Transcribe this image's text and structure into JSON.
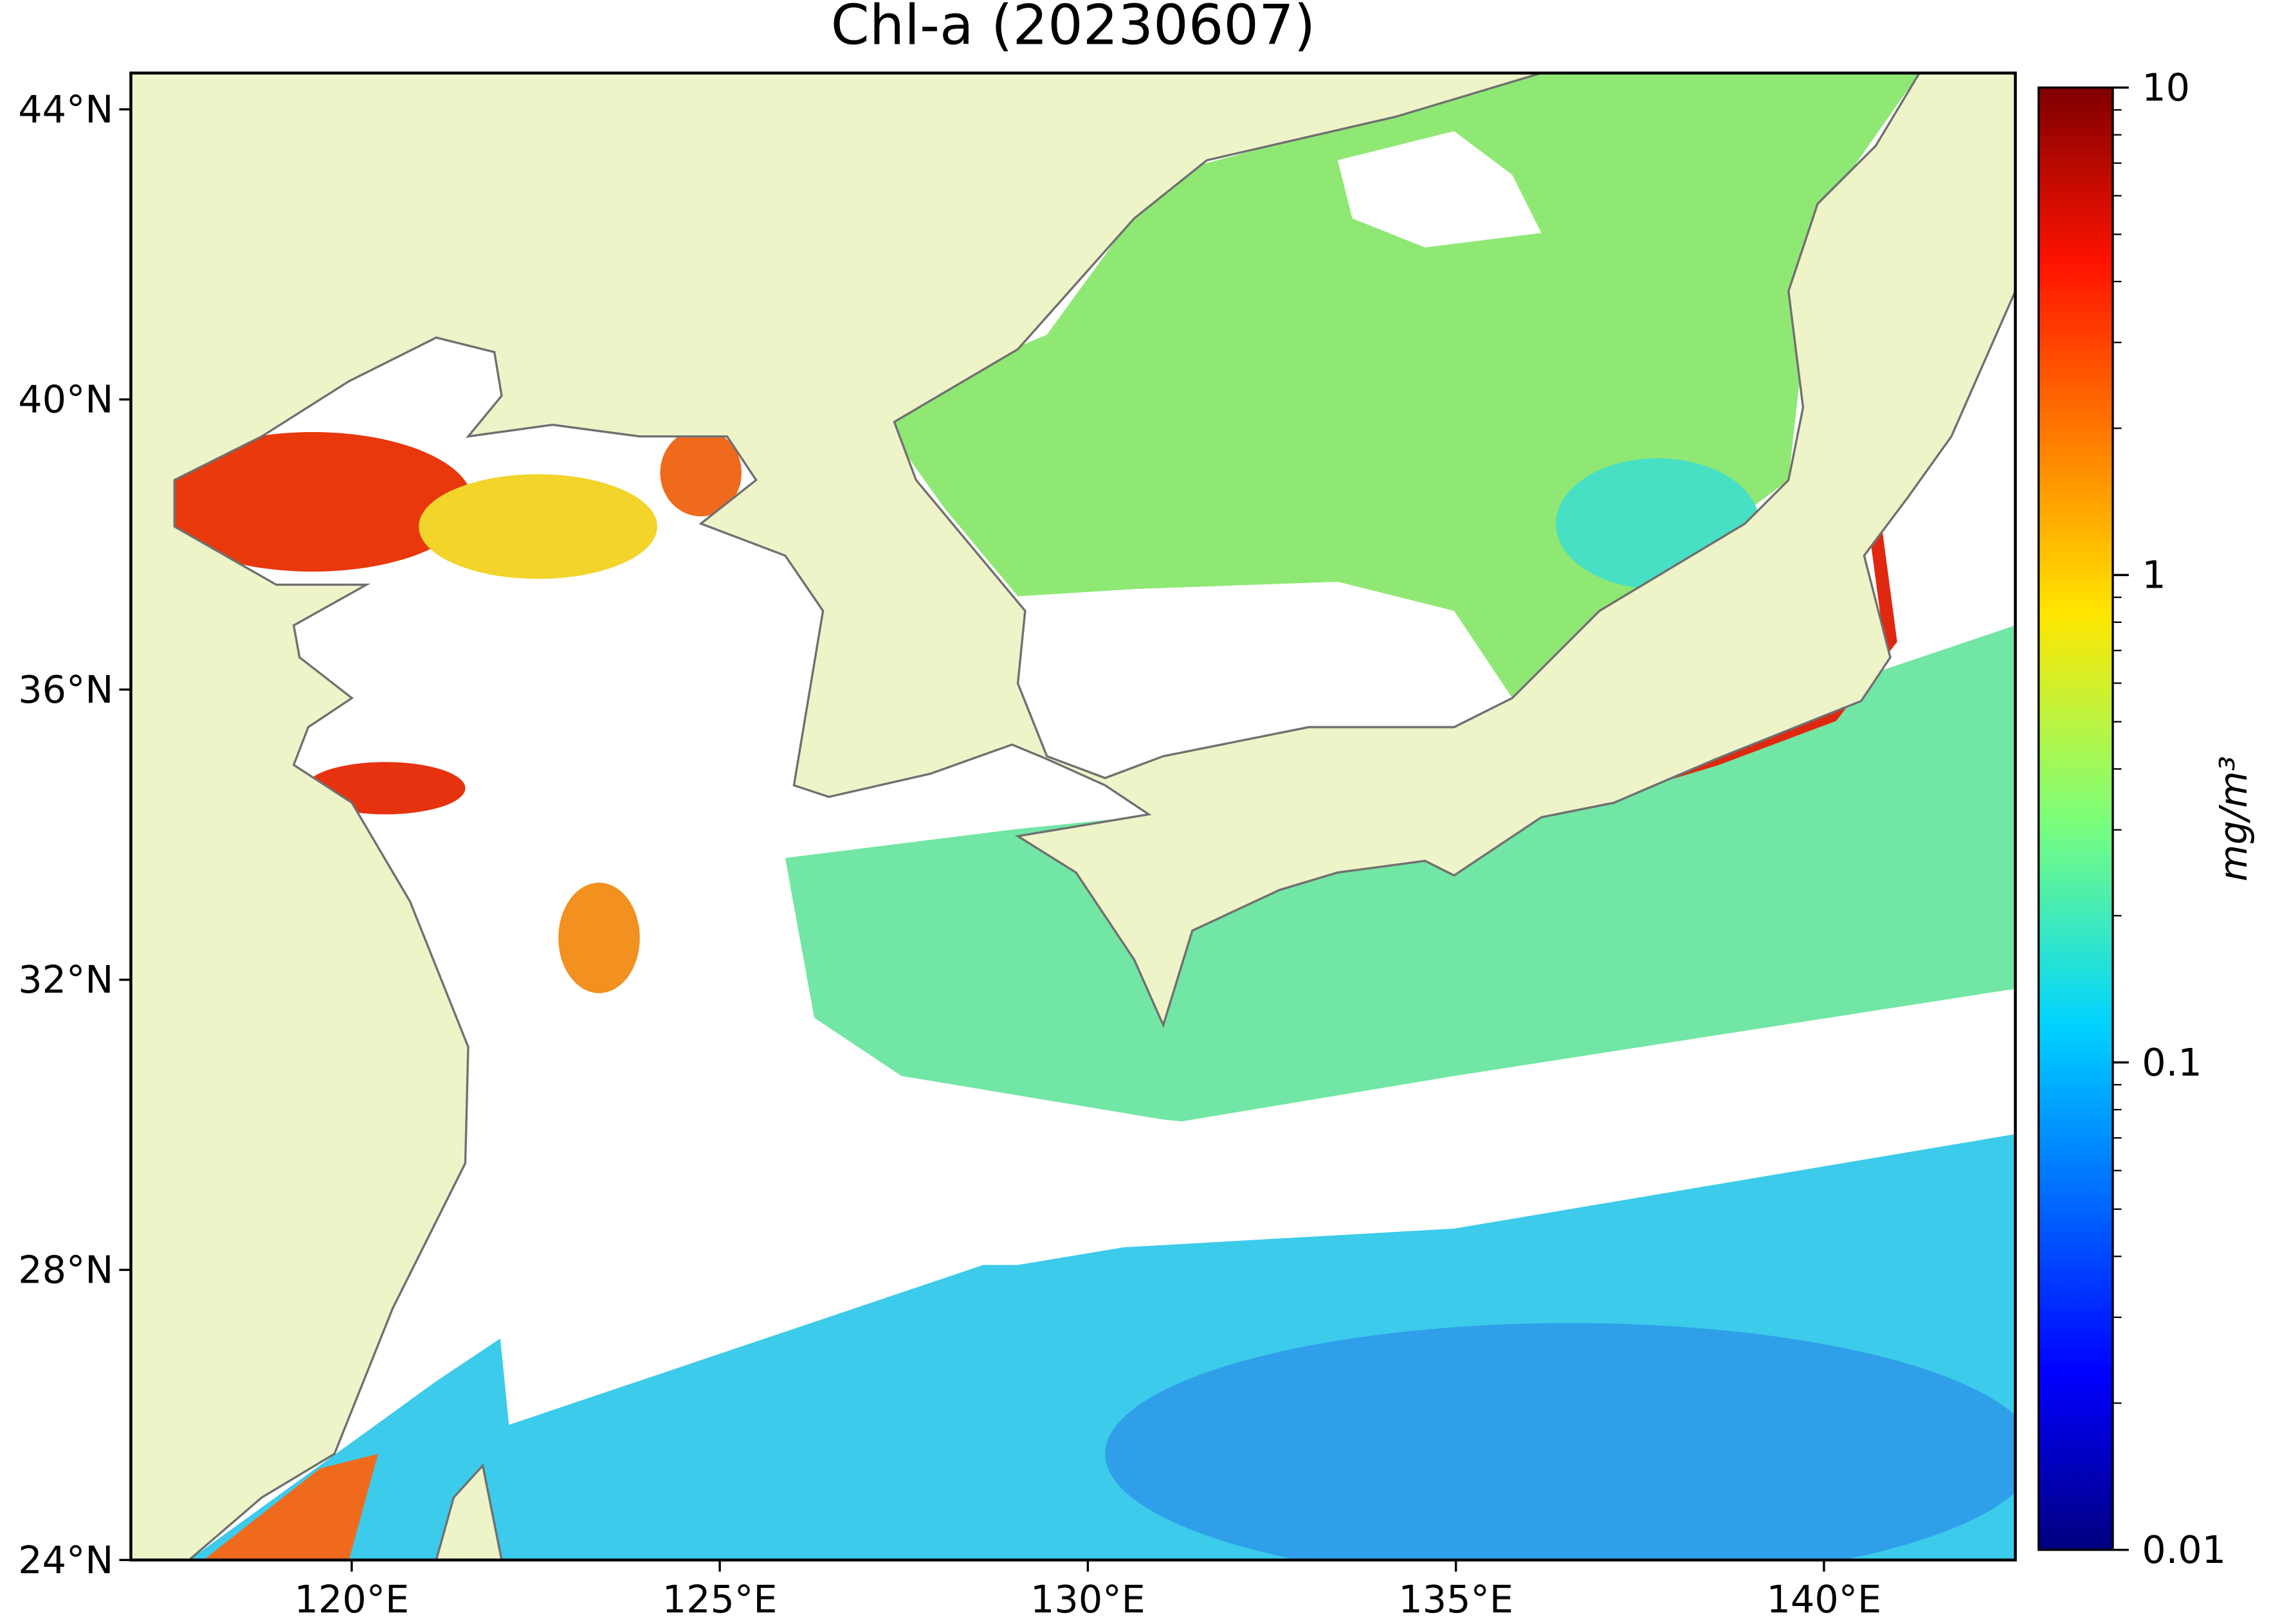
{
  "map": {
    "title": "Chl-a (20230607)",
    "xlim": [
      117,
      142.6
    ],
    "ylim": [
      24,
      44.5
    ],
    "xticks": [
      {
        "value": 120,
        "label": "120°E"
      },
      {
        "value": 125,
        "label": "125°E"
      },
      {
        "value": 130,
        "label": "130°E"
      },
      {
        "value": 135,
        "label": "135°E"
      },
      {
        "value": 140,
        "label": "140°E"
      }
    ],
    "yticks": [
      {
        "value": 24,
        "label": "24°N"
      },
      {
        "value": 28,
        "label": "28°N"
      },
      {
        "value": 32,
        "label": "32°N"
      },
      {
        "value": 36,
        "label": "36°N"
      },
      {
        "value": 40,
        "label": "40°N"
      },
      {
        "value": 44,
        "label": "44°N"
      }
    ],
    "colorbar": {
      "label": "mg/m³",
      "scale": "log",
      "lim": [
        0.01,
        10
      ],
      "ticks": [
        0.01,
        0.1,
        1,
        10
      ]
    }
  }
}
